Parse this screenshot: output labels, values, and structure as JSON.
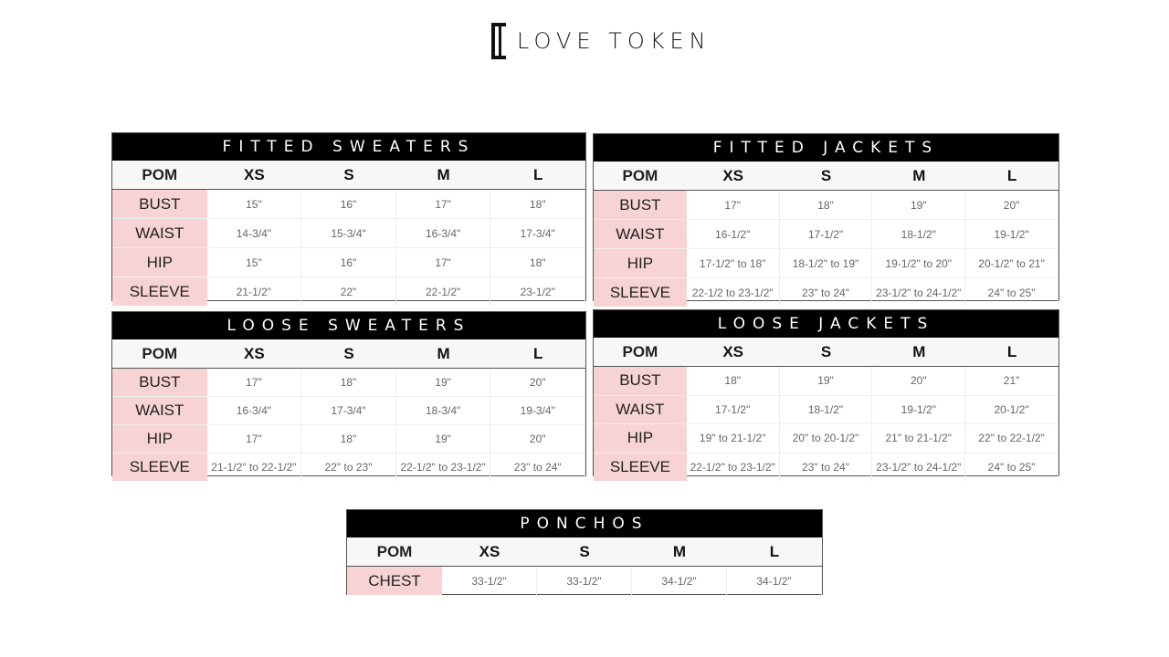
{
  "brand": {
    "name": "LOVE TOKEN",
    "logo_mark": "LT"
  },
  "sizes_header": [
    "POM",
    "XS",
    "S",
    "M",
    "L"
  ],
  "charts": [
    {
      "title": "FITTED SWEATERS",
      "rows": [
        {
          "pom": "BUST",
          "values": [
            "15\"",
            "16\"",
            "17\"",
            "18\""
          ]
        },
        {
          "pom": "WAIST",
          "values": [
            "14-3/4\"",
            "15-3/4\"",
            "16-3/4\"",
            "17-3/4\""
          ]
        },
        {
          "pom": "HIP",
          "values": [
            "15\"",
            "16\"",
            "17\"",
            "18\""
          ]
        },
        {
          "pom": "SLEEVE",
          "values": [
            "21-1/2\"",
            "22\"",
            "22-1/2\"",
            "23-1/2\""
          ]
        }
      ]
    },
    {
      "title": "FITTED JACKETS",
      "rows": [
        {
          "pom": "BUST",
          "values": [
            "17\"",
            "18\"",
            "19\"",
            "20\""
          ]
        },
        {
          "pom": "WAIST",
          "values": [
            "16-1/2\"",
            "17-1/2\"",
            "18-1/2\"",
            "19-1/2\""
          ]
        },
        {
          "pom": "HIP",
          "values": [
            "17-1/2\" to 18\"",
            "18-1/2\" to 19\"",
            "19-1/2\" to 20\"",
            "20-1/2\" to 21\""
          ]
        },
        {
          "pom": "SLEEVE",
          "values": [
            "22-1/2 to 23-1/2\"",
            "23\" to 24\"",
            "23-1/2\" to 24-1/2\"",
            "24\" to 25\""
          ]
        }
      ]
    },
    {
      "title": "LOOSE SWEATERS",
      "rows": [
        {
          "pom": "BUST",
          "values": [
            "17\"",
            "18\"",
            "19\"",
            "20\""
          ]
        },
        {
          "pom": "WAIST",
          "values": [
            "16-3/4\"",
            "17-3/4\"",
            "18-3/4\"",
            "19-3/4\""
          ]
        },
        {
          "pom": "HIP",
          "values": [
            "17\"",
            "18\"",
            "19\"",
            "20\""
          ]
        },
        {
          "pom": "SLEEVE",
          "values": [
            "21-1/2\" to 22-1/2\"",
            "22\" to 23\"",
            "22-1/2\" to 23-1/2\"",
            "23\" to 24\""
          ]
        }
      ]
    },
    {
      "title": "LOOSE JACKETS",
      "rows": [
        {
          "pom": "BUST",
          "values": [
            "18\"",
            "19\"",
            "20\"",
            "21\""
          ]
        },
        {
          "pom": "WAIST",
          "values": [
            "17-1/2\"",
            "18-1/2\"",
            "19-1/2\"",
            "20-1/2\""
          ]
        },
        {
          "pom": "HIP",
          "values": [
            "19\" to 21-1/2\"",
            "20\" to 20-1/2\"",
            "21\" to 21-1/2\"",
            "22\" to 22-1/2\""
          ]
        },
        {
          "pom": "SLEEVE",
          "values": [
            "22-1/2\" to 23-1/2\"",
            "23\" to 24\"",
            "23-1/2\" to 24-1/2\"",
            "24\" to 25\""
          ]
        }
      ]
    },
    {
      "title": "PONCHOS",
      "rows": [
        {
          "pom": "CHEST",
          "values": [
            "33-1/2\"",
            "33-1/2\"",
            "34-1/2\"",
            "34-1/2\""
          ]
        }
      ]
    }
  ],
  "colors": {
    "pom_highlight": "#f8d3d3",
    "title_bar": "#000000"
  }
}
